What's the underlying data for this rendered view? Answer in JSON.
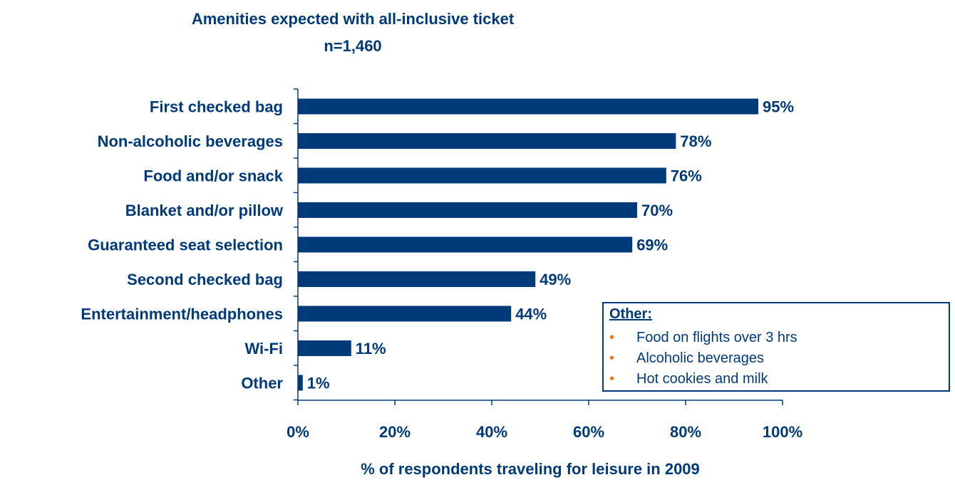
{
  "title": "Amenities expected with all-inclusive ticket",
  "subtitle": "n=1,460",
  "chart_data": {
    "type": "bar",
    "orientation": "horizontal",
    "categories": [
      "First checked bag",
      "Non-alcoholic beverages",
      "Food and/or snack",
      "Blanket and/or pillow",
      "Guaranteed seat selection",
      "Second checked bag",
      "Entertainment/headphones",
      "Wi-Fi",
      "Other"
    ],
    "values": [
      95,
      78,
      76,
      70,
      69,
      49,
      44,
      11,
      1
    ],
    "data_labels": [
      "95%",
      "78%",
      "76%",
      "70%",
      "69%",
      "49%",
      "44%",
      "11%",
      "1%"
    ],
    "xlabel": "% of respondents traveling for leisure in 2009",
    "xlim": [
      0,
      100
    ],
    "x_ticks": [
      "0%",
      "20%",
      "40%",
      "60%",
      "80%",
      "100%"
    ],
    "grid": false,
    "bar_color": "#003A78"
  },
  "other_box": {
    "title": "Other:",
    "items": [
      "Food on flights over 3 hrs",
      "Alcoholic beverages",
      "Hot cookies and milk"
    ],
    "bullet_color": "#F07A1B"
  }
}
